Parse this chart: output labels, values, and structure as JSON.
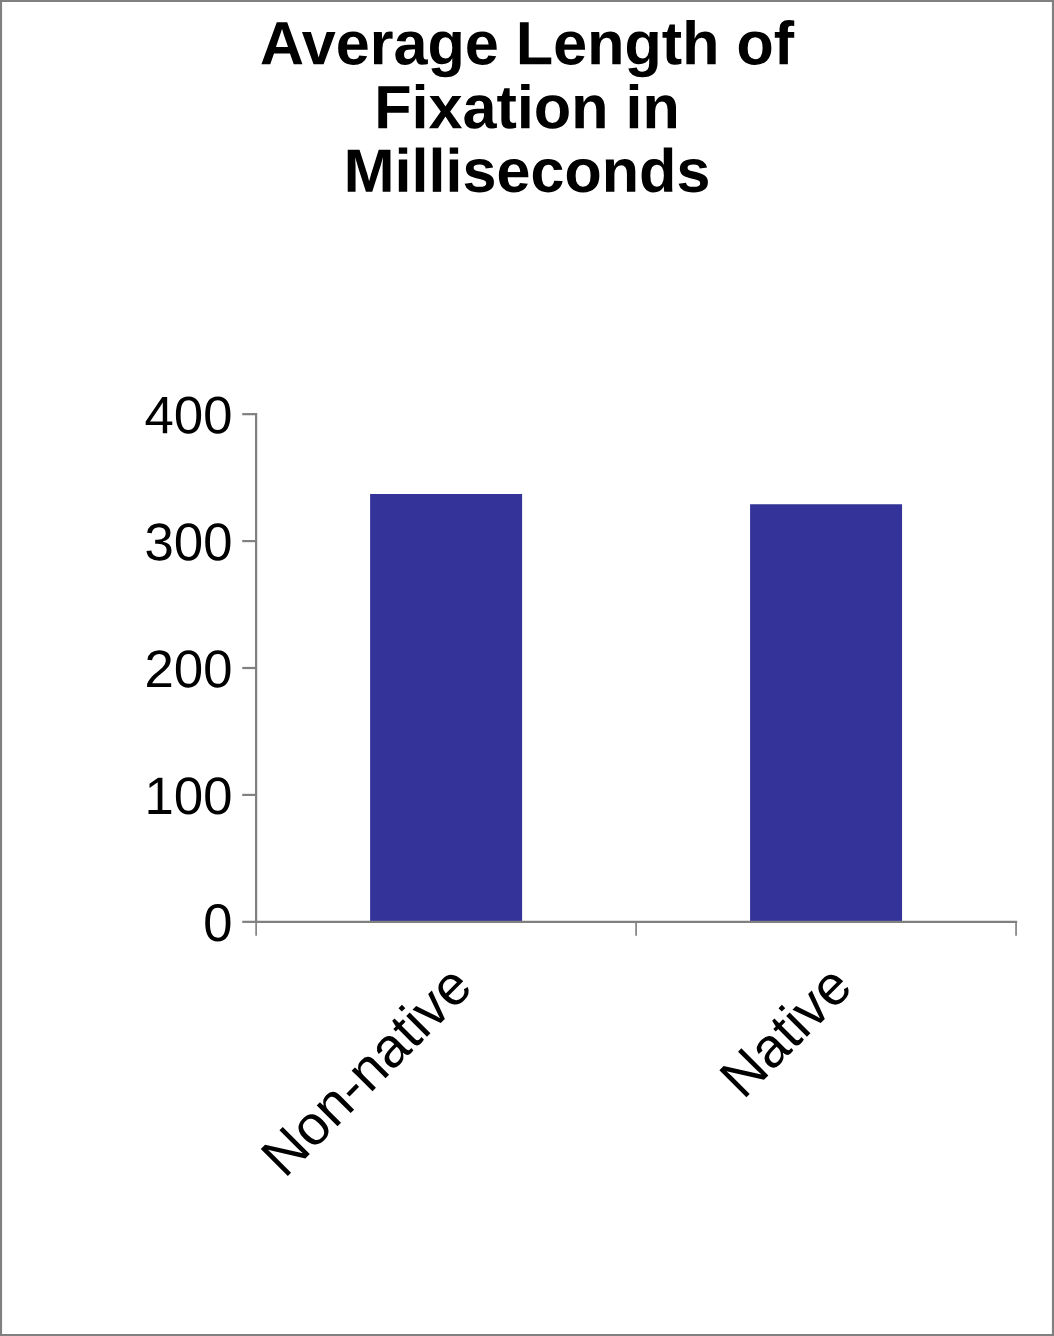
{
  "chart_data": {
    "type": "bar",
    "title": "Average Length of\nFixation in\nMilliseconds",
    "categories": [
      "Non-native",
      "Native"
    ],
    "values": [
      337,
      329
    ],
    "color": "#333399",
    "ylim": [
      0,
      400
    ],
    "yticks": [
      0,
      100,
      200,
      300,
      400
    ],
    "grid": false,
    "legend": false
  }
}
